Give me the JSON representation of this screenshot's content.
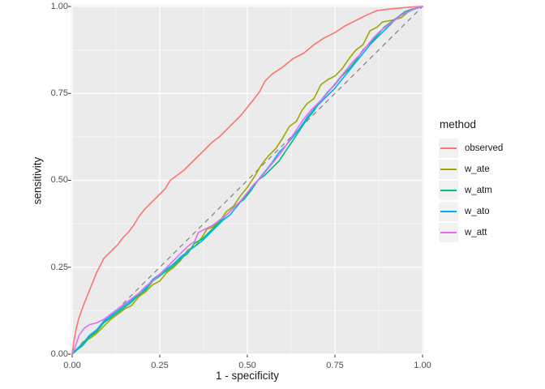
{
  "legend": {
    "title": "method",
    "items": [
      {
        "label": "observed",
        "color": "#F8766D"
      },
      {
        "label": "w_ate",
        "color": "#A3A500"
      },
      {
        "label": "w_atm",
        "color": "#00BF7D"
      },
      {
        "label": "w_ato",
        "color": "#00B0F6"
      },
      {
        "label": "w_att",
        "color": "#E76BF3"
      }
    ]
  },
  "colors": {
    "figure_bg": "#FFFFFF",
    "panel_bg": "#EBEBEB",
    "grid_major": "#FFFFFF",
    "grid_minor": "#F5F5F5",
    "tick_mark": "#333333",
    "tick_text": "#4D4D4D",
    "axis_title": "#1A1A1A",
    "legend_key_bg": "#F2F2F2",
    "reference_line": "#808080"
  },
  "chart_data": {
    "type": "line",
    "title": "",
    "xlabel": "1 - specificity",
    "ylabel": "sensitivity",
    "xlim": [
      0,
      1
    ],
    "ylim": [
      0,
      1
    ],
    "grid": true,
    "legend_position": "right",
    "x_ticks": [
      "0.00",
      "0.25",
      "0.50",
      "0.75",
      "1.00"
    ],
    "x_tick_values": [
      0,
      0.25,
      0.5,
      0.75,
      1
    ],
    "y_ticks": [
      "0.00",
      "0.25",
      "0.50",
      "0.75",
      "1.00"
    ],
    "y_tick_values": [
      0,
      0.25,
      0.5,
      0.75,
      1
    ],
    "minor_tick_values": [
      0.125,
      0.375,
      0.625,
      0.875
    ],
    "reference_line": {
      "type": "diagonal",
      "style": "dashed",
      "color": "#808080",
      "points": [
        [
          0,
          0
        ],
        [
          1,
          1
        ]
      ]
    },
    "series": [
      {
        "name": "observed",
        "color": "#F8766D",
        "points": [
          [
            0,
            0
          ],
          [
            0.004,
            0.03
          ],
          [
            0.008,
            0.055
          ],
          [
            0.012,
            0.075
          ],
          [
            0.018,
            0.1
          ],
          [
            0.025,
            0.12
          ],
          [
            0.03,
            0.135
          ],
          [
            0.04,
            0.16
          ],
          [
            0.05,
            0.185
          ],
          [
            0.06,
            0.21
          ],
          [
            0.07,
            0.235
          ],
          [
            0.08,
            0.255
          ],
          [
            0.09,
            0.275
          ],
          [
            0.1,
            0.285
          ],
          [
            0.115,
            0.3
          ],
          [
            0.13,
            0.315
          ],
          [
            0.145,
            0.335
          ],
          [
            0.16,
            0.35
          ],
          [
            0.175,
            0.37
          ],
          [
            0.19,
            0.395
          ],
          [
            0.205,
            0.415
          ],
          [
            0.22,
            0.43
          ],
          [
            0.235,
            0.445
          ],
          [
            0.25,
            0.46
          ],
          [
            0.265,
            0.475
          ],
          [
            0.28,
            0.5
          ],
          [
            0.3,
            0.515
          ],
          [
            0.32,
            0.53
          ],
          [
            0.34,
            0.55
          ],
          [
            0.36,
            0.57
          ],
          [
            0.38,
            0.59
          ],
          [
            0.4,
            0.61
          ],
          [
            0.42,
            0.625
          ],
          [
            0.44,
            0.645
          ],
          [
            0.46,
            0.665
          ],
          [
            0.48,
            0.685
          ],
          [
            0.5,
            0.71
          ],
          [
            0.52,
            0.735
          ],
          [
            0.535,
            0.755
          ],
          [
            0.55,
            0.785
          ],
          [
            0.57,
            0.805
          ],
          [
            0.6,
            0.825
          ],
          [
            0.63,
            0.85
          ],
          [
            0.66,
            0.865
          ],
          [
            0.69,
            0.89
          ],
          [
            0.72,
            0.91
          ],
          [
            0.75,
            0.925
          ],
          [
            0.78,
            0.945
          ],
          [
            0.81,
            0.96
          ],
          [
            0.84,
            0.975
          ],
          [
            0.87,
            0.988
          ],
          [
            0.9,
            0.992
          ],
          [
            0.93,
            0.995
          ],
          [
            0.96,
            0.998
          ],
          [
            1,
            1
          ]
        ]
      },
      {
        "name": "w_ate",
        "color": "#A3A500",
        "points": [
          [
            0,
            0
          ],
          [
            0.01,
            0.008
          ],
          [
            0.02,
            0.02
          ],
          [
            0.03,
            0.035
          ],
          [
            0.05,
            0.045
          ],
          [
            0.07,
            0.06
          ],
          [
            0.09,
            0.08
          ],
          [
            0.11,
            0.1
          ],
          [
            0.13,
            0.115
          ],
          [
            0.15,
            0.13
          ],
          [
            0.17,
            0.14
          ],
          [
            0.19,
            0.165
          ],
          [
            0.21,
            0.18
          ],
          [
            0.23,
            0.2
          ],
          [
            0.25,
            0.21
          ],
          [
            0.27,
            0.235
          ],
          [
            0.29,
            0.25
          ],
          [
            0.31,
            0.27
          ],
          [
            0.33,
            0.3
          ],
          [
            0.35,
            0.31
          ],
          [
            0.37,
            0.335
          ],
          [
            0.385,
            0.36
          ],
          [
            0.4,
            0.365
          ],
          [
            0.42,
            0.38
          ],
          [
            0.44,
            0.41
          ],
          [
            0.46,
            0.425
          ],
          [
            0.48,
            0.455
          ],
          [
            0.5,
            0.48
          ],
          [
            0.52,
            0.51
          ],
          [
            0.54,
            0.545
          ],
          [
            0.56,
            0.57
          ],
          [
            0.58,
            0.59
          ],
          [
            0.6,
            0.62
          ],
          [
            0.62,
            0.655
          ],
          [
            0.64,
            0.67
          ],
          [
            0.655,
            0.7
          ],
          [
            0.67,
            0.72
          ],
          [
            0.69,
            0.735
          ],
          [
            0.71,
            0.775
          ],
          [
            0.73,
            0.79
          ],
          [
            0.75,
            0.8
          ],
          [
            0.77,
            0.82
          ],
          [
            0.79,
            0.85
          ],
          [
            0.81,
            0.875
          ],
          [
            0.83,
            0.89
          ],
          [
            0.85,
            0.93
          ],
          [
            0.87,
            0.94
          ],
          [
            0.885,
            0.955
          ],
          [
            0.9,
            0.958
          ],
          [
            0.92,
            0.962
          ],
          [
            0.94,
            0.968
          ],
          [
            0.96,
            0.985
          ],
          [
            0.98,
            0.995
          ],
          [
            1,
            1
          ]
        ]
      },
      {
        "name": "w_atm",
        "color": "#00BF7D",
        "points": [
          [
            0,
            0
          ],
          [
            0.01,
            0.01
          ],
          [
            0.03,
            0.025
          ],
          [
            0.05,
            0.05
          ],
          [
            0.07,
            0.065
          ],
          [
            0.09,
            0.09
          ],
          [
            0.11,
            0.105
          ],
          [
            0.13,
            0.12
          ],
          [
            0.15,
            0.135
          ],
          [
            0.17,
            0.15
          ],
          [
            0.19,
            0.17
          ],
          [
            0.21,
            0.185
          ],
          [
            0.23,
            0.21
          ],
          [
            0.25,
            0.225
          ],
          [
            0.27,
            0.24
          ],
          [
            0.29,
            0.255
          ],
          [
            0.31,
            0.275
          ],
          [
            0.33,
            0.29
          ],
          [
            0.35,
            0.32
          ],
          [
            0.37,
            0.33
          ],
          [
            0.39,
            0.35
          ],
          [
            0.41,
            0.37
          ],
          [
            0.43,
            0.39
          ],
          [
            0.45,
            0.41
          ],
          [
            0.47,
            0.43
          ],
          [
            0.49,
            0.445
          ],
          [
            0.51,
            0.47
          ],
          [
            0.53,
            0.5
          ],
          [
            0.55,
            0.515
          ],
          [
            0.57,
            0.535
          ],
          [
            0.59,
            0.555
          ],
          [
            0.61,
            0.585
          ],
          [
            0.63,
            0.615
          ],
          [
            0.65,
            0.645
          ],
          [
            0.67,
            0.675
          ],
          [
            0.69,
            0.7
          ],
          [
            0.71,
            0.73
          ],
          [
            0.73,
            0.755
          ],
          [
            0.75,
            0.775
          ],
          [
            0.77,
            0.8
          ],
          [
            0.79,
            0.82
          ],
          [
            0.81,
            0.845
          ],
          [
            0.83,
            0.875
          ],
          [
            0.85,
            0.895
          ],
          [
            0.87,
            0.915
          ],
          [
            0.89,
            0.94
          ],
          [
            0.91,
            0.955
          ],
          [
            0.93,
            0.97
          ],
          [
            0.95,
            0.985
          ],
          [
            0.97,
            0.992
          ],
          [
            1,
            1
          ]
        ]
      },
      {
        "name": "w_ato",
        "color": "#00B0F6",
        "points": [
          [
            0,
            0
          ],
          [
            0.01,
            0.012
          ],
          [
            0.03,
            0.03
          ],
          [
            0.05,
            0.055
          ],
          [
            0.07,
            0.07
          ],
          [
            0.09,
            0.095
          ],
          [
            0.11,
            0.11
          ],
          [
            0.13,
            0.125
          ],
          [
            0.15,
            0.14
          ],
          [
            0.17,
            0.155
          ],
          [
            0.19,
            0.175
          ],
          [
            0.21,
            0.19
          ],
          [
            0.23,
            0.215
          ],
          [
            0.25,
            0.23
          ],
          [
            0.27,
            0.245
          ],
          [
            0.29,
            0.26
          ],
          [
            0.31,
            0.28
          ],
          [
            0.33,
            0.295
          ],
          [
            0.35,
            0.31
          ],
          [
            0.37,
            0.325
          ],
          [
            0.39,
            0.345
          ],
          [
            0.41,
            0.365
          ],
          [
            0.43,
            0.385
          ],
          [
            0.45,
            0.4
          ],
          [
            0.47,
            0.425
          ],
          [
            0.49,
            0.45
          ],
          [
            0.51,
            0.475
          ],
          [
            0.53,
            0.5
          ],
          [
            0.55,
            0.525
          ],
          [
            0.57,
            0.55
          ],
          [
            0.59,
            0.58
          ],
          [
            0.61,
            0.6
          ],
          [
            0.63,
            0.625
          ],
          [
            0.65,
            0.65
          ],
          [
            0.67,
            0.68
          ],
          [
            0.69,
            0.705
          ],
          [
            0.71,
            0.725
          ],
          [
            0.73,
            0.745
          ],
          [
            0.75,
            0.765
          ],
          [
            0.77,
            0.79
          ],
          [
            0.79,
            0.815
          ],
          [
            0.81,
            0.84
          ],
          [
            0.83,
            0.865
          ],
          [
            0.85,
            0.89
          ],
          [
            0.87,
            0.91
          ],
          [
            0.89,
            0.93
          ],
          [
            0.91,
            0.95
          ],
          [
            0.93,
            0.97
          ],
          [
            0.95,
            0.98
          ],
          [
            0.97,
            0.99
          ],
          [
            1,
            1
          ]
        ]
      },
      {
        "name": "w_att",
        "color": "#E76BF3",
        "points": [
          [
            0,
            0
          ],
          [
            0.008,
            0.02
          ],
          [
            0.02,
            0.055
          ],
          [
            0.035,
            0.075
          ],
          [
            0.05,
            0.085
          ],
          [
            0.07,
            0.09
          ],
          [
            0.09,
            0.1
          ],
          [
            0.11,
            0.115
          ],
          [
            0.13,
            0.13
          ],
          [
            0.15,
            0.145
          ],
          [
            0.17,
            0.16
          ],
          [
            0.19,
            0.175
          ],
          [
            0.21,
            0.195
          ],
          [
            0.23,
            0.21
          ],
          [
            0.25,
            0.23
          ],
          [
            0.27,
            0.25
          ],
          [
            0.29,
            0.27
          ],
          [
            0.31,
            0.29
          ],
          [
            0.33,
            0.31
          ],
          [
            0.35,
            0.325
          ],
          [
            0.36,
            0.35
          ],
          [
            0.38,
            0.36
          ],
          [
            0.4,
            0.37
          ],
          [
            0.42,
            0.385
          ],
          [
            0.44,
            0.4
          ],
          [
            0.46,
            0.42
          ],
          [
            0.48,
            0.44
          ],
          [
            0.5,
            0.465
          ],
          [
            0.52,
            0.49
          ],
          [
            0.54,
            0.51
          ],
          [
            0.56,
            0.535
          ],
          [
            0.58,
            0.56
          ],
          [
            0.6,
            0.585
          ],
          [
            0.62,
            0.615
          ],
          [
            0.64,
            0.645
          ],
          [
            0.66,
            0.675
          ],
          [
            0.68,
            0.7
          ],
          [
            0.7,
            0.72
          ],
          [
            0.72,
            0.74
          ],
          [
            0.74,
            0.765
          ],
          [
            0.76,
            0.79
          ],
          [
            0.78,
            0.815
          ],
          [
            0.8,
            0.84
          ],
          [
            0.82,
            0.86
          ],
          [
            0.84,
            0.885
          ],
          [
            0.86,
            0.91
          ],
          [
            0.88,
            0.93
          ],
          [
            0.9,
            0.945
          ],
          [
            0.92,
            0.96
          ],
          [
            0.94,
            0.975
          ],
          [
            0.96,
            0.985
          ],
          [
            0.98,
            0.995
          ],
          [
            1,
            1
          ]
        ]
      }
    ]
  }
}
